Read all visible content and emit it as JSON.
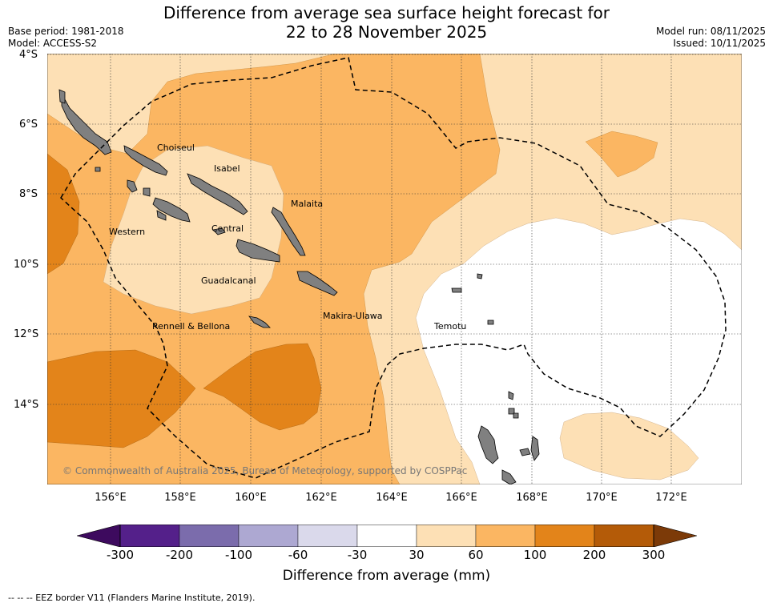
{
  "title_line1": "Difference from average sea surface height forecast for",
  "title_line2": "22 to 28 November 2025",
  "base_period": "Base period: 1981-2018",
  "model": "Model: ACCESS-S2",
  "model_run": "Model run: 08/11/2025",
  "issued": "Issued: 10/11/2025",
  "lat_labels": [
    "4°S",
    "6°S",
    "8°S",
    "10°S",
    "12°S",
    "14°S"
  ],
  "lon_labels": [
    "156°E",
    "158°E",
    "160°E",
    "162°E",
    "164°E",
    "166°E",
    "168°E",
    "170°E",
    "172°E"
  ],
  "regions": [
    "Choiseul",
    "Isabel",
    "Malaita",
    "Western",
    "Central",
    "Guadalcanal",
    "Makira-Ulawa",
    "Rennell & Bellona",
    "Temotu"
  ],
  "copyright": "© Commonwealth of Australia 2025, Bureau of Meteorology, supported by COSPPac",
  "colorbar": {
    "ticks": [
      "-300",
      "-200",
      "-100",
      "-60",
      "-30",
      "30",
      "60",
      "100",
      "200",
      "300"
    ],
    "colors": [
      "#54208a",
      "#7b6cac",
      "#ada8d2",
      "#dad9eb",
      "#ffffff",
      "#fde0b5",
      "#fbb662",
      "#e3841a",
      "#b45b08"
    ],
    "under_color": "#3d0a5e",
    "over_color": "#7c3a08",
    "title": "Difference from average (mm)"
  },
  "legend_line": "--  --  -- EEZ border V11 (Flanders Marine Institute, 2019)."
}
